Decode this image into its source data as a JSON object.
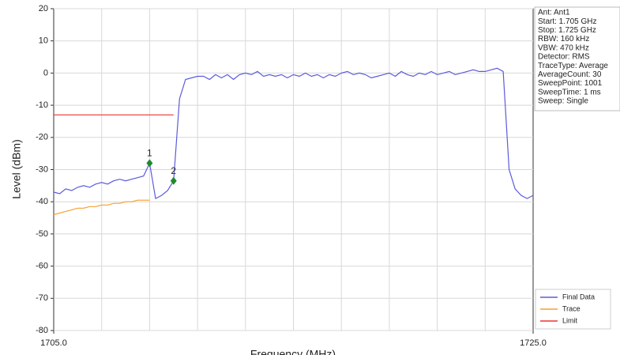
{
  "chart_data": {
    "type": "line",
    "xlabel": "Frequency (MHz)",
    "ylabel": "Level (dBm)",
    "xlim": [
      1705.0,
      1725.0
    ],
    "ylim": [
      -80,
      20
    ],
    "xticks": [
      {
        "value": 1705.0,
        "label": "1705.0"
      },
      {
        "value": 1725.0,
        "label": "1725.0"
      }
    ],
    "xgrid": [
      1707,
      1709,
      1711,
      1713,
      1715,
      1717,
      1719,
      1721,
      1723
    ],
    "yticks": [
      20,
      10,
      0,
      -10,
      -20,
      -30,
      -40,
      -50,
      -60,
      -70,
      -80
    ],
    "grid": true,
    "legend": "lower right",
    "series": [
      {
        "name": "Final Data",
        "color": "#5b5bdc",
        "x": [
          1705,
          1705.25,
          1705.5,
          1705.75,
          1706,
          1706.25,
          1706.5,
          1706.75,
          1707,
          1707.25,
          1707.5,
          1707.75,
          1708,
          1708.25,
          1708.5,
          1708.75,
          1709,
          1709.25,
          1709.5,
          1709.75,
          1710,
          1710.25,
          1710.5,
          1710.75,
          1711,
          1711.25,
          1711.5,
          1711.75,
          1712,
          1712.25,
          1712.5,
          1712.75,
          1713,
          1713.25,
          1713.5,
          1713.75,
          1714,
          1714.25,
          1714.5,
          1714.75,
          1715,
          1715.25,
          1715.5,
          1715.75,
          1716,
          1716.25,
          1716.5,
          1716.75,
          1717,
          1717.25,
          1717.5,
          1717.75,
          1718,
          1718.25,
          1718.5,
          1718.75,
          1719,
          1719.25,
          1719.5,
          1719.75,
          1720,
          1720.25,
          1720.5,
          1720.75,
          1721,
          1721.25,
          1721.5,
          1721.75,
          1722,
          1722.25,
          1722.5,
          1722.75,
          1723,
          1723.25,
          1723.5,
          1723.75,
          1724,
          1724.25,
          1724.5,
          1724.75,
          1725
        ],
        "values": [
          -37,
          -37.5,
          -36,
          -36.5,
          -35.5,
          -35,
          -35.5,
          -34.5,
          -34,
          -34.5,
          -33.5,
          -33,
          -33.5,
          -33,
          -32.5,
          -32,
          -28,
          -39,
          -38,
          -36.5,
          -33.5,
          -8,
          -2,
          -1.5,
          -1,
          -1,
          -2,
          -0.5,
          -1.5,
          -0.5,
          -2,
          -0.5,
          0,
          -0.5,
          0.5,
          -1,
          -0.5,
          -1,
          -0.5,
          -1.5,
          -0.5,
          -1,
          0,
          -1,
          -0.5,
          -1.5,
          -0.5,
          -1,
          0,
          0.5,
          -0.5,
          0,
          -0.5,
          -1.5,
          -1,
          -0.5,
          0,
          -1,
          0.5,
          -0.5,
          -1,
          0,
          -0.5,
          0.5,
          -0.5,
          0,
          0.5,
          -0.5,
          0,
          0.5,
          1,
          0.5,
          0.5,
          1,
          1.5,
          0.5,
          -30,
          -36,
          -38,
          -39,
          -38
        ]
      },
      {
        "name": "Trace",
        "color": "#f5a030",
        "x": [
          1705,
          1705.25,
          1705.5,
          1705.75,
          1706,
          1706.25,
          1706.5,
          1706.75,
          1707,
          1707.25,
          1707.5,
          1707.75,
          1708,
          1708.25,
          1708.5,
          1708.75,
          1709
        ],
        "values": [
          -44,
          -43.5,
          -43,
          -42.5,
          -42,
          -42,
          -41.5,
          -41.5,
          -41,
          -41,
          -40.5,
          -40.5,
          -40,
          -40,
          -39.5,
          -39.5,
          -39.5
        ]
      },
      {
        "name": "Limit",
        "color": "#ee3333",
        "x": [
          1705,
          1710
        ],
        "values": [
          -13,
          -13
        ]
      }
    ],
    "markers": [
      {
        "label": "1",
        "x": 1709.0,
        "y": -28
      },
      {
        "label": "2",
        "x": 1710.0,
        "y": -33.5
      }
    ],
    "marker_color": "#1e8a2e",
    "info": [
      "Ant: Ant1",
      "Start: 1.705 GHz",
      "Stop: 1.725 GHz",
      "RBW: 160 kHz",
      "VBW: 470 kHz",
      "Detector: RMS",
      "TraceType: Average",
      "AverageCount: 30",
      "SweepPoint: 1001",
      "SweepTime: 1 ms",
      "Sweep: Single"
    ]
  }
}
